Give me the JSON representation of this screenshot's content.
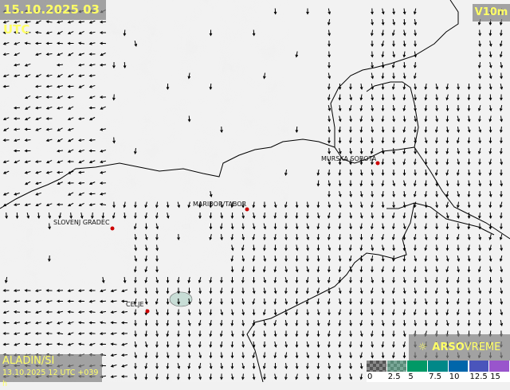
{
  "header": {
    "valid_time": "15.10.2025 03 UTC",
    "variable": "V10m"
  },
  "model": {
    "name": "ALADIN/SI",
    "run": "13.10.2025 12 UTC +039 h"
  },
  "branding": {
    "logo_icon": "sun-cloud-icon",
    "brand_bold": "ARSO",
    "brand_light": "VREME"
  },
  "legend": {
    "labels": [
      "0",
      "2.5",
      "5",
      "7.5",
      "10",
      "12.5",
      "15"
    ],
    "colors": [
      "#555555",
      "#5a8a78",
      "#009966",
      "#008888",
      "#0066aa",
      "#4a55bb",
      "#9955cc"
    ]
  },
  "cities": [
    {
      "name": "MURSKA SOBOTA"
    },
    {
      "name": "MARIBOR/TABOR"
    },
    {
      "name": "SLOVENJ GRADEC"
    },
    {
      "name": "CELJE"
    }
  ],
  "colors": {
    "city_dot": "#cc0000",
    "text": "#ffff66",
    "arrow": "#000000"
  }
}
